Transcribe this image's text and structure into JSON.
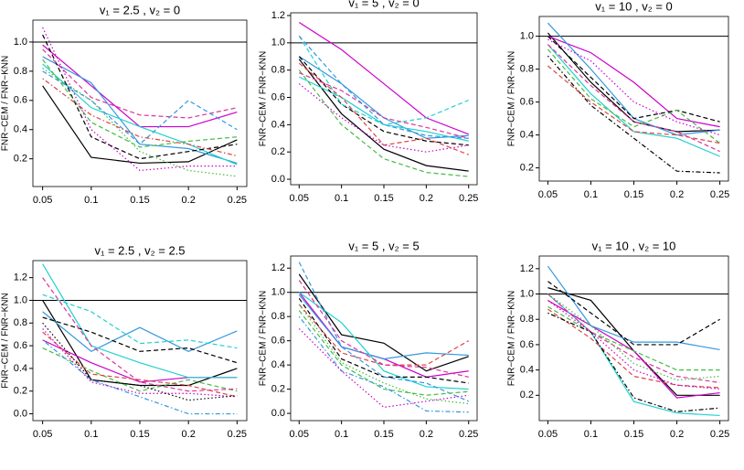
{
  "chart_data": [
    {
      "type": "line",
      "title": "v₁ = 2.5 , v₂ = 0",
      "y_label": "FNR−CEM / FNR−KNN",
      "x": [
        0.05,
        0.1,
        0.15,
        0.2,
        0.25
      ],
      "xlim": [
        0.04,
        0.26
      ],
      "xticks": [
        0.05,
        0.1,
        0.15,
        0.2,
        0.25
      ],
      "ylim": [
        0.01,
        1.15
      ],
      "yticks": [
        0.2,
        0.4,
        0.6,
        0.8,
        {
          "value": 1,
          "label": "1.0"
        }
      ],
      "hline": 1,
      "series": [
        {
          "color": "#000000",
          "dash": "solid",
          "values": [
            0.7,
            0.21,
            0.17,
            0.18,
            0.33
          ]
        },
        {
          "color": "#cc00cc",
          "dash": "solid",
          "values": [
            0.98,
            0.7,
            0.42,
            0.42,
            0.52
          ]
        },
        {
          "color": "#3399dd",
          "dash": "solid",
          "values": [
            0.9,
            0.72,
            0.3,
            0.27,
            0.17
          ]
        },
        {
          "color": "#22d0d0",
          "dash": "solid",
          "values": [
            0.85,
            0.55,
            0.42,
            0.3,
            0.16
          ]
        },
        {
          "color": "#000000",
          "dash": "dashed",
          "values": [
            1.05,
            0.35,
            0.2,
            0.25,
            0.3
          ]
        },
        {
          "color": "#dd3399",
          "dash": "dashed",
          "values": [
            0.95,
            0.62,
            0.5,
            0.48,
            0.55
          ]
        },
        {
          "color": "#3399dd",
          "dash": "dashed",
          "values": [
            0.8,
            0.6,
            0.3,
            0.6,
            0.4
          ]
        },
        {
          "color": "#44bb44",
          "dash": "dashed",
          "values": [
            0.88,
            0.45,
            0.28,
            0.32,
            0.35
          ]
        },
        {
          "color": "#dd4444",
          "dash": "dotdash",
          "values": [
            0.75,
            0.5,
            0.35,
            0.3,
            0.22
          ]
        },
        {
          "color": "#cc00cc",
          "dash": "dotted",
          "values": [
            1.1,
            0.4,
            0.12,
            0.15,
            0.15
          ]
        },
        {
          "color": "#44bb44",
          "dash": "dotted",
          "values": [
            0.82,
            0.6,
            0.25,
            0.12,
            0.08
          ]
        }
      ]
    },
    {
      "type": "line",
      "title": "v₁ = 5 , v₂ = 0",
      "y_label": "FNR−CEM / FNR−KNN",
      "x": [
        0.05,
        0.1,
        0.15,
        0.2,
        0.25
      ],
      "xlim": [
        0.04,
        0.26
      ],
      "xticks": [
        0.05,
        0.1,
        0.15,
        0.2,
        0.25
      ],
      "ylim": [
        -0.04,
        1.22
      ],
      "yticks": [
        {
          "value": 0,
          "label": "0.0"
        },
        0.2,
        0.4,
        0.6,
        0.8,
        {
          "value": 1,
          "label": "1.0"
        },
        1.2
      ],
      "hline": 1,
      "series": [
        {
          "color": "#000000",
          "dash": "solid",
          "values": [
            0.88,
            0.48,
            0.22,
            0.1,
            0.06
          ]
        },
        {
          "color": "#cc00cc",
          "dash": "solid",
          "values": [
            1.15,
            0.95,
            0.7,
            0.45,
            0.33
          ]
        },
        {
          "color": "#3399dd",
          "dash": "solid",
          "values": [
            0.9,
            0.7,
            0.45,
            0.3,
            0.32
          ]
        },
        {
          "color": "#22d0d0",
          "dash": "solid",
          "values": [
            0.75,
            0.6,
            0.4,
            0.35,
            0.28
          ]
        },
        {
          "color": "#000000",
          "dash": "dashed",
          "values": [
            0.9,
            0.55,
            0.35,
            0.28,
            0.25
          ]
        },
        {
          "color": "#22d0d0",
          "dash": "dashed",
          "values": [
            1.05,
            0.55,
            0.4,
            0.45,
            0.58
          ]
        },
        {
          "color": "#44bb44",
          "dash": "dashed",
          "values": [
            0.8,
            0.4,
            0.15,
            0.05,
            0.02
          ]
        },
        {
          "color": "#dd4444",
          "dash": "dashed",
          "values": [
            0.85,
            0.6,
            0.25,
            0.3,
            0.18
          ]
        },
        {
          "color": "#dd3399",
          "dash": "dashed",
          "values": [
            0.78,
            0.65,
            0.45,
            0.38,
            0.3
          ]
        },
        {
          "color": "#3399dd",
          "dash": "dashed",
          "values": [
            1.05,
            0.7,
            0.4,
            0.32,
            0.3
          ]
        },
        {
          "color": "#cc00cc",
          "dash": "dotted",
          "values": [
            0.7,
            0.45,
            0.25,
            0.2,
            0.25
          ]
        }
      ]
    },
    {
      "type": "line",
      "title": "v₁ = 10 , v₂ = 0",
      "y_label": "FNR−CEM / FNR−KNN",
      "x": [
        0.05,
        0.1,
        0.15,
        0.2,
        0.25
      ],
      "xlim": [
        0.04,
        0.26
      ],
      "xticks": [
        0.05,
        0.1,
        0.15,
        0.2,
        0.25
      ],
      "ylim": [
        0.12,
        1.12
      ],
      "yticks": [
        0.2,
        0.4,
        0.6,
        0.8,
        {
          "value": 1,
          "label": "1.0"
        }
      ],
      "hline": 1,
      "series": [
        {
          "color": "#000000",
          "dash": "solid",
          "values": [
            1.02,
            0.72,
            0.48,
            0.42,
            0.43
          ]
        },
        {
          "color": "#cc00cc",
          "dash": "solid",
          "values": [
            1.0,
            0.9,
            0.72,
            0.5,
            0.45
          ]
        },
        {
          "color": "#3399dd",
          "dash": "solid",
          "values": [
            1.08,
            0.8,
            0.5,
            0.4,
            0.43
          ]
        },
        {
          "color": "#22d0d0",
          "dash": "solid",
          "values": [
            0.95,
            0.65,
            0.42,
            0.38,
            0.27
          ]
        },
        {
          "color": "#000000",
          "dash": "dashed",
          "values": [
            1.0,
            0.75,
            0.5,
            0.55,
            0.48
          ]
        },
        {
          "color": "#000000",
          "dash": "dotdash",
          "values": [
            0.88,
            0.58,
            0.38,
            0.18,
            0.17
          ]
        },
        {
          "color": "#44bb44",
          "dash": "dashed",
          "values": [
            0.92,
            0.62,
            0.45,
            0.55,
            0.35
          ]
        },
        {
          "color": "#dd4444",
          "dash": "dashed",
          "values": [
            0.82,
            0.6,
            0.42,
            0.4,
            0.35
          ]
        },
        {
          "color": "#dd3399",
          "dash": "dashed",
          "values": [
            0.95,
            0.7,
            0.48,
            0.42,
            0.3
          ]
        },
        {
          "color": "#cc00cc",
          "dash": "dotted",
          "values": [
            0.98,
            0.85,
            0.6,
            0.48,
            0.4
          ]
        }
      ]
    },
    {
      "type": "line",
      "title": "v₁ = 2.5 , v₂ = 2.5",
      "y_label": "FNR−CEM / FNR−KNN",
      "x": [
        0.05,
        0.1,
        0.15,
        0.2,
        0.25
      ],
      "xlim": [
        0.04,
        0.26
      ],
      "xticks": [
        0.05,
        0.1,
        0.15,
        0.2,
        0.25
      ],
      "ylim": [
        -0.06,
        1.35
      ],
      "yticks": [
        {
          "value": 0,
          "label": "0.0"
        },
        0.2,
        0.4,
        0.6,
        0.8,
        {
          "value": 1,
          "label": "1.0"
        },
        1.2
      ],
      "hline": 1,
      "series": [
        {
          "color": "#000000",
          "dash": "solid",
          "values": [
            1.0,
            0.3,
            0.25,
            0.25,
            0.4
          ]
        },
        {
          "color": "#cc00cc",
          "dash": "solid",
          "values": [
            0.65,
            0.45,
            0.28,
            0.32,
            0.32
          ]
        },
        {
          "color": "#3399dd",
          "dash": "solid",
          "values": [
            0.9,
            0.55,
            0.76,
            0.55,
            0.73
          ]
        },
        {
          "color": "#22d0d0",
          "dash": "solid",
          "values": [
            1.32,
            0.6,
            0.45,
            0.32,
            0.32
          ]
        },
        {
          "color": "#000000",
          "dash": "dashed",
          "values": [
            0.85,
            0.72,
            0.55,
            0.58,
            0.45
          ]
        },
        {
          "color": "#22d0d0",
          "dash": "dashed",
          "values": [
            1.05,
            0.9,
            0.62,
            0.65,
            0.58
          ]
        },
        {
          "color": "#44bb44",
          "dash": "dashed",
          "values": [
            0.58,
            0.38,
            0.2,
            0.3,
            0.2
          ]
        },
        {
          "color": "#dd4444",
          "dash": "dashed",
          "values": [
            0.72,
            0.35,
            0.3,
            0.25,
            0.15
          ]
        },
        {
          "color": "#dd3399",
          "dash": "dashed",
          "values": [
            1.2,
            0.6,
            0.28,
            0.2,
            0.22
          ]
        },
        {
          "color": "#3399dd",
          "dash": "dotdash",
          "values": [
            0.65,
            0.3,
            0.15,
            0.0,
            0.0
          ]
        },
        {
          "color": "#cc00cc",
          "dash": "dotted",
          "values": [
            0.75,
            0.28,
            0.18,
            0.18,
            0.15
          ]
        },
        {
          "color": "#000000",
          "dash": "dotted",
          "values": [
            0.8,
            0.3,
            0.25,
            0.12,
            0.16
          ]
        }
      ]
    },
    {
      "type": "line",
      "title": "v₁ = 5 , v₂ = 5",
      "y_label": "FNR−CEM / FNR−KNN",
      "x": [
        0.05,
        0.1,
        0.15,
        0.2,
        0.25
      ],
      "xlim": [
        0.04,
        0.26
      ],
      "xticks": [
        0.05,
        0.1,
        0.15,
        0.2,
        0.25
      ],
      "ylim": [
        -0.06,
        1.3
      ],
      "yticks": [
        {
          "value": 0,
          "label": "0.0"
        },
        0.2,
        0.4,
        0.6,
        0.8,
        {
          "value": 1,
          "label": "1.0"
        },
        1.2
      ],
      "hline": 1,
      "series": [
        {
          "color": "#000000",
          "dash": "solid",
          "values": [
            1.15,
            0.65,
            0.58,
            0.35,
            0.47
          ]
        },
        {
          "color": "#cc00cc",
          "dash": "solid",
          "values": [
            1.0,
            0.55,
            0.45,
            0.3,
            0.35
          ]
        },
        {
          "color": "#3399dd",
          "dash": "solid",
          "values": [
            0.98,
            0.55,
            0.45,
            0.5,
            0.48
          ]
        },
        {
          "color": "#22d0d0",
          "dash": "solid",
          "values": [
            1.0,
            0.75,
            0.35,
            0.22,
            0.2
          ]
        },
        {
          "color": "#000000",
          "dash": "dashed",
          "values": [
            0.95,
            0.45,
            0.3,
            0.3,
            0.25
          ]
        },
        {
          "color": "#3399dd",
          "dash": "dashed",
          "values": [
            1.25,
            0.55,
            0.3,
            0.25,
            0.1
          ]
        },
        {
          "color": "#44bb44",
          "dash": "dashed",
          "values": [
            0.85,
            0.4,
            0.2,
            0.15,
            0.18
          ]
        },
        {
          "color": "#dd4444",
          "dash": "dashed",
          "values": [
            0.9,
            0.5,
            0.4,
            0.4,
            0.6
          ]
        },
        {
          "color": "#dd3399",
          "dash": "dashed",
          "values": [
            1.1,
            0.6,
            0.4,
            0.38,
            0.3
          ]
        },
        {
          "color": "#3399dd",
          "dash": "dotdash",
          "values": [
            0.8,
            0.35,
            0.22,
            0.02,
            0.01
          ]
        },
        {
          "color": "#cc00cc",
          "dash": "dotted",
          "values": [
            0.7,
            0.35,
            0.05,
            0.1,
            0.15
          ]
        },
        {
          "color": "#44bb44",
          "dash": "dotted",
          "values": [
            0.9,
            0.42,
            0.25,
            0.12,
            0.08
          ]
        }
      ]
    },
    {
      "type": "line",
      "title": "v₁ = 10 , v₂ = 10",
      "y_label": "FNR−CEM / FNR−KNN",
      "x": [
        0.05,
        0.1,
        0.15,
        0.2,
        0.25
      ],
      "xlim": [
        0.04,
        0.26
      ],
      "xticks": [
        0.05,
        0.1,
        0.15,
        0.2,
        0.25
      ],
      "ylim": [
        0.0,
        1.3
      ],
      "yticks": [
        0.2,
        0.4,
        0.6,
        0.8,
        {
          "value": 1,
          "label": "1.0"
        },
        1.2
      ],
      "hline": 1,
      "series": [
        {
          "color": "#000000",
          "dash": "solid",
          "values": [
            1.05,
            0.95,
            0.55,
            0.2,
            0.2
          ]
        },
        {
          "color": "#cc00cc",
          "dash": "solid",
          "values": [
            0.95,
            0.75,
            0.55,
            0.18,
            0.22
          ]
        },
        {
          "color": "#3399dd",
          "dash": "solid",
          "values": [
            1.22,
            0.75,
            0.62,
            0.62,
            0.56
          ]
        },
        {
          "color": "#22d0d0",
          "dash": "solid",
          "values": [
            1.0,
            0.7,
            0.15,
            0.06,
            0.04
          ]
        },
        {
          "color": "#000000",
          "dash": "dashed",
          "values": [
            1.1,
            0.85,
            0.6,
            0.6,
            0.8
          ]
        },
        {
          "color": "#44bb44",
          "dash": "dashed",
          "values": [
            0.9,
            0.7,
            0.55,
            0.4,
            0.4
          ]
        },
        {
          "color": "#dd4444",
          "dash": "dashed",
          "values": [
            0.88,
            0.65,
            0.35,
            0.28,
            0.26
          ]
        },
        {
          "color": "#dd3399",
          "dash": "dashed",
          "values": [
            1.0,
            0.7,
            0.5,
            0.35,
            0.3
          ]
        },
        {
          "color": "#000000",
          "dash": "dotdash",
          "values": [
            0.85,
            0.7,
            0.18,
            0.07,
            0.1
          ]
        },
        {
          "color": "#cc00cc",
          "dash": "dotted",
          "values": [
            0.95,
            0.7,
            0.4,
            0.28,
            0.25
          ]
        },
        {
          "color": "#44bb44",
          "dash": "dotted",
          "values": [
            1.0,
            0.75,
            0.45,
            0.32,
            0.35
          ]
        }
      ]
    }
  ]
}
